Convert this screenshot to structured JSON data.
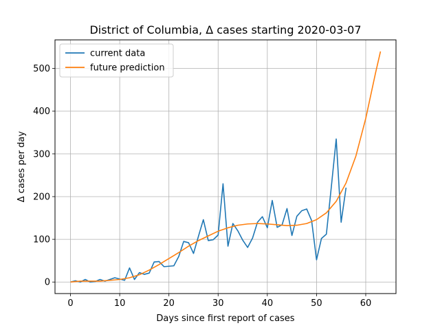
{
  "chart_data": {
    "type": "line",
    "title": "District of Columbia, Δ cases starting 2020-03-07",
    "xlabel": "Days since first report of cases",
    "ylabel": "Δ cases per day",
    "xlim": [
      -3.15,
      66.15
    ],
    "ylim": [
      -27,
      567
    ],
    "xticks": [
      0,
      10,
      20,
      30,
      40,
      50,
      60
    ],
    "yticks": [
      0,
      100,
      200,
      300,
      400,
      500
    ],
    "grid": true,
    "legend_position": "top-left",
    "series": [
      {
        "name": "current data",
        "color": "#1f77b4",
        "x": [
          0,
          1,
          2,
          3,
          4,
          5,
          6,
          7,
          8,
          9,
          10,
          11,
          12,
          13,
          14,
          15,
          16,
          17,
          18,
          19,
          20,
          21,
          22,
          23,
          24,
          25,
          26,
          27,
          28,
          29,
          30,
          31,
          32,
          33,
          34,
          35,
          36,
          37,
          38,
          39,
          40,
          41,
          42,
          43,
          44,
          45,
          46,
          47,
          48,
          49,
          50,
          51,
          52,
          53,
          54,
          55,
          56
        ],
        "y": [
          0,
          3,
          0,
          6,
          0,
          1,
          6,
          2,
          6,
          10,
          7,
          4,
          33,
          6,
          22,
          18,
          21,
          47,
          48,
          36,
          37,
          38,
          60,
          95,
          92,
          67,
          107,
          146,
          97,
          99,
          110,
          230,
          84,
          137,
          120,
          98,
          81,
          103,
          140,
          153,
          127,
          191,
          128,
          134,
          172,
          109,
          154,
          167,
          171,
          144,
          52,
          102,
          112,
          222,
          335,
          140,
          221
        ]
      },
      {
        "name": "future prediction",
        "color": "#ff7f0e",
        "x": [
          0,
          2,
          4,
          6,
          8,
          10,
          12,
          14,
          16,
          18,
          20,
          22,
          24,
          26,
          28,
          30,
          32,
          34,
          36,
          38,
          40,
          42,
          44,
          46,
          48,
          50,
          52,
          54,
          56,
          58,
          60,
          62,
          63
        ],
        "y": [
          0,
          2,
          2,
          2,
          4,
          6,
          10,
          17,
          28,
          41,
          55,
          69,
          84,
          97,
          108,
          119,
          127,
          133,
          136,
          137,
          136,
          134,
          132,
          133,
          137,
          146,
          162,
          189,
          232,
          295,
          383,
          490,
          540
        ]
      }
    ]
  }
}
